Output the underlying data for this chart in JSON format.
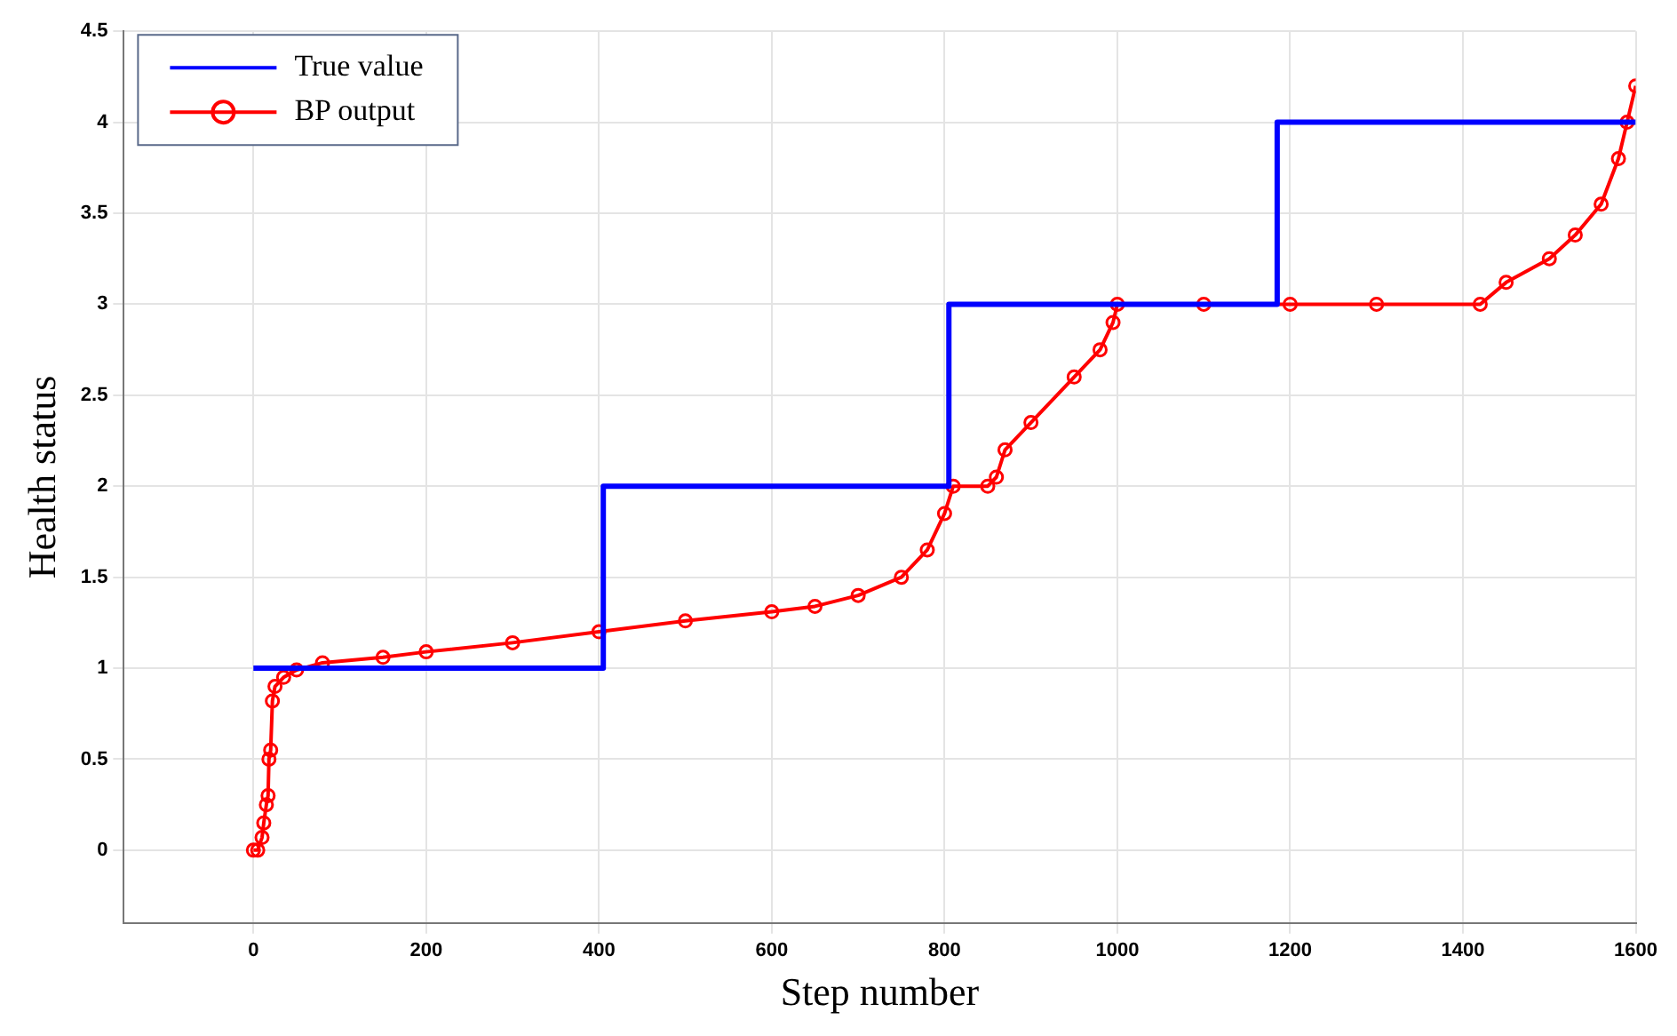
{
  "chart_data": {
    "type": "line",
    "xlabel": "Step number",
    "ylabel": "Health status",
    "xlim": [
      -150,
      1600
    ],
    "xticks": [
      0,
      200,
      400,
      600,
      800,
      1000,
      1200,
      1400,
      1600
    ],
    "ylim": [
      -0.4,
      4.5
    ],
    "yticks": [
      0,
      0.5,
      1,
      1.5,
      2,
      2.5,
      3,
      3.5,
      4,
      4.5
    ],
    "grid": true,
    "legend": "top left",
    "series": [
      {
        "name": "True value",
        "type": "step",
        "color": "#0000ff",
        "marker": "none",
        "x": [
          0,
          405,
          805,
          1185,
          1600
        ],
        "values": [
          1,
          2,
          3,
          4,
          4
        ]
      },
      {
        "name": "BP output",
        "type": "line",
        "color": "#ff0000",
        "marker": "circle",
        "x": [
          0,
          5,
          10,
          12,
          15,
          17,
          18,
          20,
          22,
          25,
          35,
          50,
          80,
          150,
          200,
          300,
          400,
          500,
          600,
          650,
          700,
          750,
          780,
          800,
          810,
          850,
          860,
          870,
          900,
          950,
          980,
          995,
          1000,
          1100,
          1200,
          1300,
          1420,
          1450,
          1500,
          1530,
          1560,
          1580,
          1590,
          1600
        ],
        "values": [
          0,
          0,
          0.07,
          0.15,
          0.25,
          0.3,
          0.5,
          0.55,
          0.82,
          0.9,
          0.95,
          0.99,
          1.03,
          1.06,
          1.09,
          1.14,
          1.2,
          1.26,
          1.31,
          1.34,
          1.4,
          1.5,
          1.65,
          1.85,
          2.0,
          2.0,
          2.05,
          2.2,
          2.35,
          2.6,
          2.75,
          2.9,
          3.0,
          3.0,
          3.0,
          3.0,
          3.0,
          3.12,
          3.25,
          3.38,
          3.55,
          3.8,
          4.0,
          4.2
        ]
      }
    ]
  }
}
